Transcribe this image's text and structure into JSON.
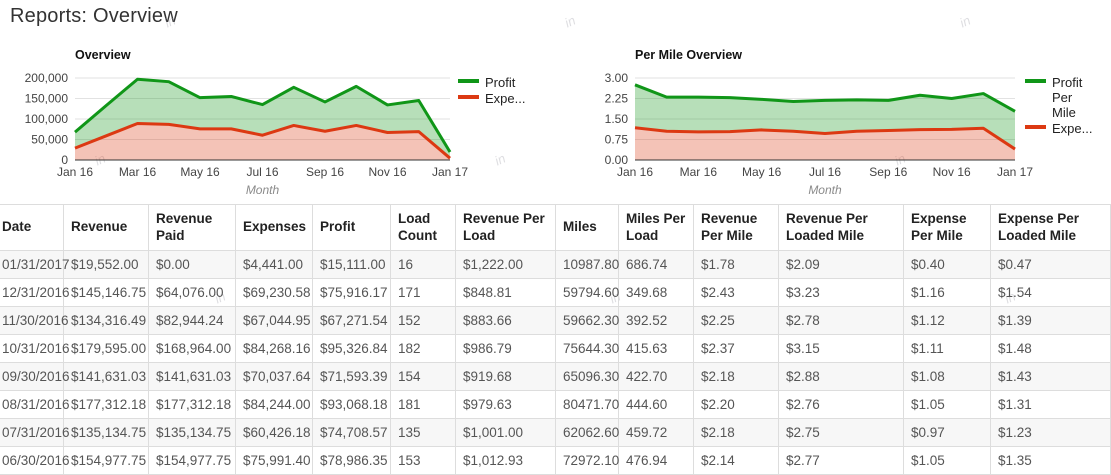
{
  "page": {
    "title": "Reports: Overview"
  },
  "decoration": {
    "watermark": "in"
  },
  "chart_data": [
    {
      "type": "area",
      "stacked": true,
      "title": "Overview",
      "xlabel": "Month",
      "ylabel": "",
      "ylim": [
        0,
        200000
      ],
      "y_ticks": [
        "0",
        "50,000",
        "100,000",
        "150,000",
        "200,000"
      ],
      "grid": true,
      "legend_position": "right",
      "x": [
        "Jan 16",
        "Feb 16",
        "Mar 16",
        "Apr 16",
        "May 16",
        "Jun 16",
        "Jul 16",
        "Aug 16",
        "Sep 16",
        "Oct 16",
        "Nov 16",
        "Dec 16",
        "Jan 17"
      ],
      "series": [
        {
          "name": "Expenses",
          "legend_lines": [
            "Expe..."
          ],
          "color": "#dc3912",
          "fill": "rgba(220,57,18,0.30)",
          "values": [
            29000,
            59000,
            89000,
            87000,
            76000,
            75991.4,
            60426.18,
            84244.0,
            70037.64,
            84268.16,
            67044.95,
            69230.58,
            4441.0
          ]
        },
        {
          "name": "Profit",
          "legend_lines": [
            "Profit"
          ],
          "color": "#109618",
          "fill": "rgba(16,150,24,0.30)",
          "values": [
            39000,
            74000,
            108000,
            104000,
            76000,
            78986.35,
            74708.57,
            93068.18,
            71593.39,
            95326.84,
            67271.54,
            75916.17,
            15111.0
          ]
        }
      ]
    },
    {
      "type": "area",
      "stacked": true,
      "title": "Per Mile Overview",
      "xlabel": "Month",
      "ylabel": "",
      "ylim": [
        0,
        3
      ],
      "y_ticks": [
        "0.00",
        "0.75",
        "1.50",
        "2.25",
        "3.00"
      ],
      "grid": true,
      "legend_position": "right",
      "x": [
        "Jan 16",
        "Feb 16",
        "Mar 16",
        "Apr 16",
        "May 16",
        "Jun 16",
        "Jul 16",
        "Aug 16",
        "Sep 16",
        "Oct 16",
        "Nov 16",
        "Dec 16",
        "Jan 17"
      ],
      "series": [
        {
          "name": "Expense Per Mile",
          "legend_lines": [
            "Expe..."
          ],
          "color": "#dc3912",
          "fill": "rgba(220,57,18,0.30)",
          "values": [
            1.18,
            1.05,
            1.03,
            1.04,
            1.1,
            1.05,
            0.97,
            1.05,
            1.08,
            1.11,
            1.12,
            1.16,
            0.4
          ]
        },
        {
          "name": "Profit Per Mile",
          "legend_lines": [
            "Profit",
            "Per",
            "Mile"
          ],
          "color": "#109618",
          "fill": "rgba(16,150,24,0.30)",
          "values": [
            1.57,
            1.25,
            1.27,
            1.24,
            1.12,
            1.09,
            1.21,
            1.15,
            1.1,
            1.26,
            1.13,
            1.27,
            1.38
          ]
        }
      ]
    }
  ],
  "table": {
    "columns": [
      "Date",
      "Revenue",
      "Revenue Paid",
      "Expenses",
      "Profit",
      "Load Count",
      "Revenue Per Load",
      "Miles",
      "Miles Per Load",
      "Revenue Per Mile",
      "Revenue Per Loaded Mile",
      "Expense Per Mile",
      "Expense Per Loaded Mile"
    ],
    "rows": [
      [
        "01/31/2017",
        "$19,552.00",
        "$0.00",
        "$4,441.00",
        "$15,111.00",
        "16",
        "$1,222.00",
        "10987.80",
        "686.74",
        "$1.78",
        "$2.09",
        "$0.40",
        "$0.47"
      ],
      [
        "12/31/2016",
        "$145,146.75",
        "$64,076.00",
        "$69,230.58",
        "$75,916.17",
        "171",
        "$848.81",
        "59794.60",
        "349.68",
        "$2.43",
        "$3.23",
        "$1.16",
        "$1.54"
      ],
      [
        "11/30/2016",
        "$134,316.49",
        "$82,944.24",
        "$67,044.95",
        "$67,271.54",
        "152",
        "$883.66",
        "59662.30",
        "392.52",
        "$2.25",
        "$2.78",
        "$1.12",
        "$1.39"
      ],
      [
        "10/31/2016",
        "$179,595.00",
        "$168,964.00",
        "$84,268.16",
        "$95,326.84",
        "182",
        "$986.79",
        "75644.30",
        "415.63",
        "$2.37",
        "$3.15",
        "$1.11",
        "$1.48"
      ],
      [
        "09/30/2016",
        "$141,631.03",
        "$141,631.03",
        "$70,037.64",
        "$71,593.39",
        "154",
        "$919.68",
        "65096.30",
        "422.70",
        "$2.18",
        "$2.88",
        "$1.08",
        "$1.43"
      ],
      [
        "08/31/2016",
        "$177,312.18",
        "$177,312.18",
        "$84,244.00",
        "$93,068.18",
        "181",
        "$979.63",
        "80471.70",
        "444.60",
        "$2.20",
        "$2.76",
        "$1.05",
        "$1.31"
      ],
      [
        "07/31/2016",
        "$135,134.75",
        "$135,134.75",
        "$60,426.18",
        "$74,708.57",
        "135",
        "$1,001.00",
        "62062.60",
        "459.72",
        "$2.18",
        "$2.75",
        "$0.97",
        "$1.23"
      ],
      [
        "06/30/2016",
        "$154,977.75",
        "$154,977.75",
        "$75,991.40",
        "$78,986.35",
        "153",
        "$1,012.93",
        "72972.10",
        "476.94",
        "$2.14",
        "$2.77",
        "$1.05",
        "$1.35"
      ]
    ]
  }
}
